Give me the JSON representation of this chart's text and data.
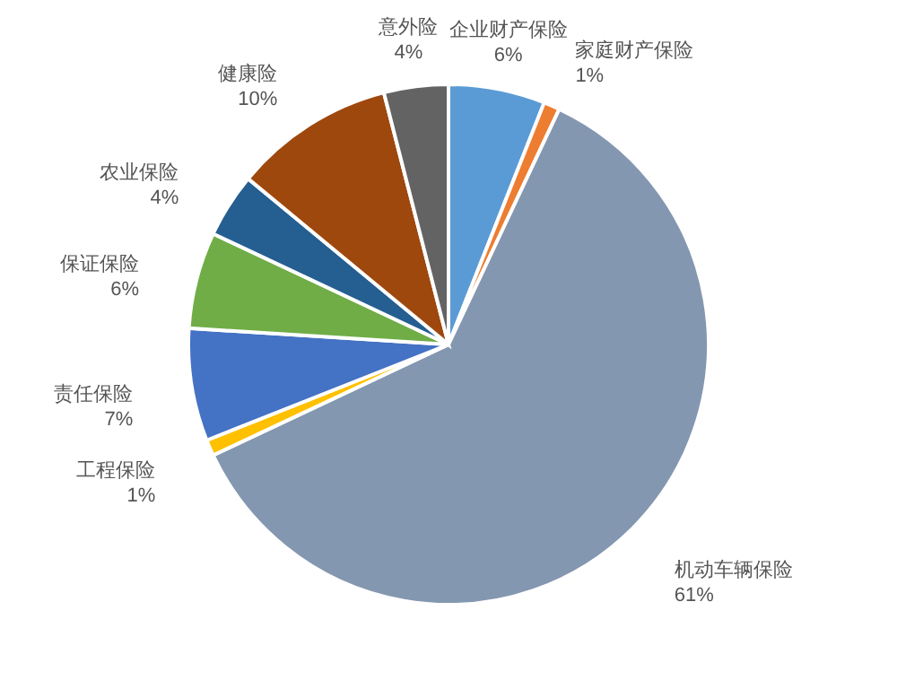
{
  "chart_data": {
    "type": "pie",
    "categories": [
      "企业财产保险",
      "家庭财产保险",
      "机动车辆保险",
      "工程保险",
      "责任保险",
      "保证保险",
      "农业保险",
      "健康险",
      "意外险"
    ],
    "values": [
      6,
      1,
      61,
      1,
      7,
      6,
      4,
      10,
      4
    ],
    "value_labels": [
      "6%",
      "1%",
      "61%",
      "1%",
      "7%",
      "6%",
      "4%",
      "10%",
      "4%"
    ],
    "colors": [
      "#5b9bd5",
      "#ed7d31",
      "#8497b0",
      "#ffc000",
      "#4472c4",
      "#70ad47",
      "#255e91",
      "#9e480e",
      "#636363"
    ]
  }
}
